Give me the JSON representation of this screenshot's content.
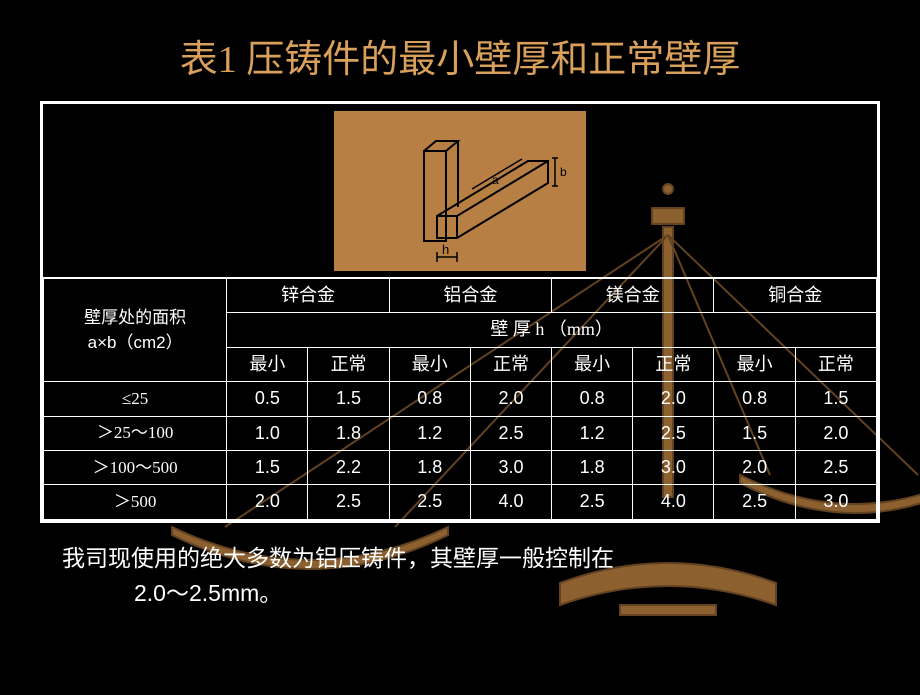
{
  "title": "表1    压铸件的最小壁厚和正常壁厚",
  "colors": {
    "background": "#000000",
    "title": "#d9a05b",
    "border": "#ffffff",
    "text": "#ffffff",
    "diagram_bg": "#b77f43",
    "diagram_stroke": "#000000",
    "scale_fill": "#9a6a34",
    "scale_stroke": "#6b4824"
  },
  "header": {
    "area_label_line1": "壁厚处的面积",
    "area_label_line2": "a×b（cm2）",
    "alloy_groups": [
      "锌合金",
      "铝合金",
      "镁合金",
      "铜合金"
    ],
    "thickness_label": "壁  厚  h （mm）",
    "sub_labels": [
      "最小",
      "正常"
    ]
  },
  "column_widths_pct": [
    22,
    9.75,
    9.75,
    9.75,
    9.75,
    9.75,
    9.75,
    9.75,
    9.75
  ],
  "rows": [
    {
      "label": "≤25",
      "values": [
        "0.5",
        "1.5",
        "0.8",
        "2.0",
        "0.8",
        "2.0",
        "0.8",
        "1.5"
      ]
    },
    {
      "label": "＞25～100",
      "values": [
        "1.0",
        "1.8",
        "1.2",
        "2.5",
        "1.2",
        "2.5",
        "1.5",
        "2.0"
      ]
    },
    {
      "label": "＞100～500",
      "values": [
        "1.5",
        "2.2",
        "1.8",
        "3.0",
        "1.8",
        "3.0",
        "2.0",
        "2.5"
      ]
    },
    {
      "label": "＞500",
      "values": [
        "2.0",
        "2.5",
        "2.5",
        "4.0",
        "2.5",
        "4.0",
        "2.5",
        "3.0"
      ]
    }
  ],
  "note_line1": "我司现使用的绝大多数为铝压铸件，其壁厚一般控制在",
  "note_line2": "2.0～2.5mm。",
  "diagram_labels": {
    "a": "a",
    "b": "b",
    "h": "h"
  }
}
